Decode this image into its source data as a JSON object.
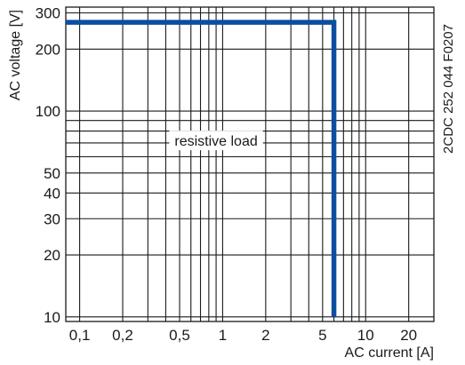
{
  "chart_data": {
    "type": "line",
    "xlabel": "AC current [A]",
    "ylabel": "AC voltage [V]",
    "x_scale": "log",
    "y_scale": "log",
    "xlim": [
      0.08,
      30
    ],
    "ylim": [
      9.5,
      320
    ],
    "x_ticks": [
      {
        "value": 0.1,
        "label": "0,1"
      },
      {
        "value": 0.2,
        "label": "0,2"
      },
      {
        "value": 0.5,
        "label": "0,5"
      },
      {
        "value": 1,
        "label": "1"
      },
      {
        "value": 2,
        "label": "2"
      },
      {
        "value": 5,
        "label": "5"
      },
      {
        "value": 10,
        "label": "10"
      },
      {
        "value": 20,
        "label": "20"
      }
    ],
    "y_ticks": [
      {
        "value": 10,
        "label": "10"
      },
      {
        "value": 20,
        "label": "20"
      },
      {
        "value": 30,
        "label": "30"
      },
      {
        "value": 40,
        "label": "40"
      },
      {
        "value": 50,
        "label": "50"
      },
      {
        "value": 100,
        "label": "100"
      },
      {
        "value": 200,
        "label": "200"
      },
      {
        "value": 300,
        "label": "300"
      }
    ],
    "x_grid": [
      0.1,
      0.2,
      0.3,
      0.4,
      0.5,
      0.6,
      0.7,
      0.8,
      0.9,
      1,
      2,
      3,
      4,
      5,
      6,
      7,
      8,
      9,
      10,
      20
    ],
    "y_grid": [
      10,
      20,
      30,
      40,
      50,
      60,
      70,
      80,
      90,
      100,
      200,
      300
    ],
    "grid": true,
    "series": [
      {
        "name": "",
        "color": "#0b4ea2",
        "points": [
          [
            0.08,
            270
          ],
          [
            6,
            270
          ],
          [
            6,
            10
          ]
        ]
      }
    ],
    "annotations": [
      {
        "text": "resistive load",
        "x": 0.9,
        "y": 72
      }
    ],
    "document_ref": "2CDC 252 044 F0207"
  }
}
